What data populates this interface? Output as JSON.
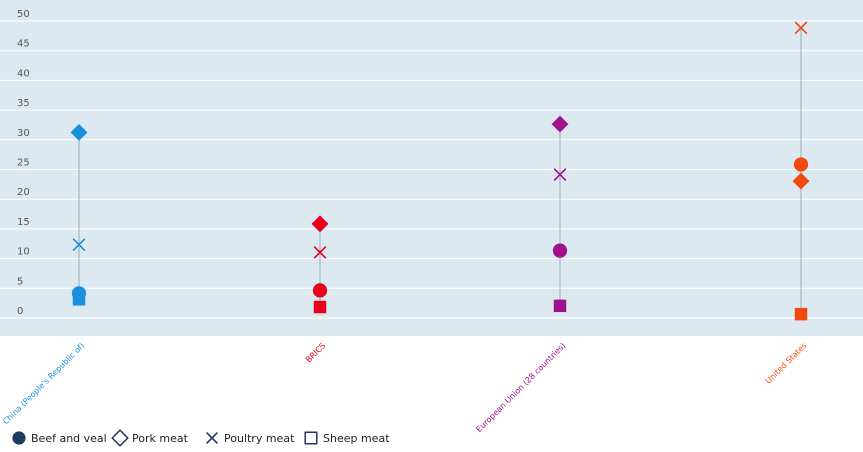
{
  "chart_data": {
    "type": "scatter",
    "title": "",
    "xlabel": "",
    "ylabel": "",
    "ylim": [
      -5,
      50
    ],
    "yticks": [
      0,
      5,
      10,
      15,
      20,
      25,
      30,
      35,
      40,
      45,
      50
    ],
    "grid": true,
    "legend_position": "bottom-left",
    "categories": [
      "China (People's Republic of)",
      "BRICS",
      "European Union (28 countries)",
      "United States"
    ],
    "category_colors": [
      "#1a8fdc",
      "#e8001c",
      "#a0118f",
      "#f04a0f"
    ],
    "series": [
      {
        "name": "Beef and veal",
        "marker": "circle",
        "values": [
          2.8,
          3.3,
          10.0,
          24.5
        ]
      },
      {
        "name": "Pork meat",
        "marker": "diamond",
        "values": [
          29.9,
          14.5,
          31.3,
          21.7
        ]
      },
      {
        "name": "Poultry meat",
        "marker": "x",
        "values": [
          11.0,
          9.7,
          22.8,
          47.5
        ]
      },
      {
        "name": "Sheep meat",
        "marker": "square",
        "values": [
          1.8,
          0.5,
          0.7,
          -0.7
        ]
      }
    ],
    "colors": {
      "plot_background": "#dde9f1",
      "grid": "#ffffff",
      "range_line": "#9aaebb",
      "legend_marker": "#1f3a5f"
    }
  }
}
